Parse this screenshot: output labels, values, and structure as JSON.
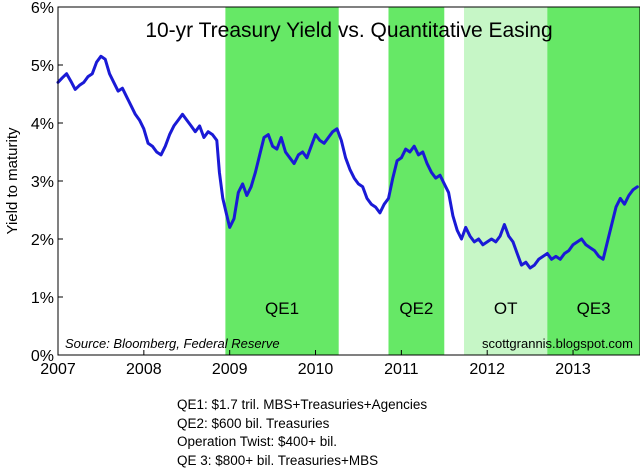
{
  "chart_data": {
    "type": "line",
    "title": "10-yr Treasury Yield vs. Quantitative Easing",
    "ylabel": "Yield to maturity",
    "xlabel": "",
    "ylim": [
      0,
      6
    ],
    "xlim": [
      2007.0,
      2013.78
    ],
    "y_ticks": [
      "0%",
      "1%",
      "2%",
      "3%",
      "4%",
      "5%",
      "6%"
    ],
    "x_ticks": [
      "2007",
      "2008",
      "2009",
      "2010",
      "2011",
      "2012",
      "2013"
    ],
    "grid": false,
    "source": "Source: Bloomberg, Federal Reserve",
    "credit": "scottgrannis.blogspot.com",
    "line_color": "#1a1ad6",
    "shaded_regions": [
      {
        "label": "QE1",
        "start": 2008.95,
        "end": 2010.27,
        "color": "#66e866"
      },
      {
        "label": "QE2",
        "start": 2010.85,
        "end": 2011.5,
        "color": "#66e866"
      },
      {
        "label": "OT",
        "start": 2011.73,
        "end": 2012.7,
        "color": "#c6f6c6"
      },
      {
        "label": "QE3",
        "start": 2012.7,
        "end": 2013.78,
        "color": "#66e866"
      }
    ],
    "series": [
      {
        "values": [
          [
            2007.0,
            4.7
          ],
          [
            2007.05,
            4.78
          ],
          [
            2007.1,
            4.85
          ],
          [
            2007.15,
            4.72
          ],
          [
            2007.2,
            4.58
          ],
          [
            2007.25,
            4.65
          ],
          [
            2007.3,
            4.7
          ],
          [
            2007.35,
            4.8
          ],
          [
            2007.4,
            4.85
          ],
          [
            2007.45,
            5.05
          ],
          [
            2007.5,
            5.15
          ],
          [
            2007.55,
            5.1
          ],
          [
            2007.6,
            4.85
          ],
          [
            2007.65,
            4.7
          ],
          [
            2007.7,
            4.55
          ],
          [
            2007.75,
            4.6
          ],
          [
            2007.8,
            4.45
          ],
          [
            2007.85,
            4.3
          ],
          [
            2007.9,
            4.15
          ],
          [
            2007.95,
            4.05
          ],
          [
            2008.0,
            3.9
          ],
          [
            2008.05,
            3.65
          ],
          [
            2008.1,
            3.6
          ],
          [
            2008.15,
            3.5
          ],
          [
            2008.2,
            3.45
          ],
          [
            2008.25,
            3.6
          ],
          [
            2008.3,
            3.8
          ],
          [
            2008.35,
            3.95
          ],
          [
            2008.4,
            4.05
          ],
          [
            2008.45,
            4.15
          ],
          [
            2008.5,
            4.05
          ],
          [
            2008.55,
            3.95
          ],
          [
            2008.6,
            3.85
          ],
          [
            2008.65,
            3.95
          ],
          [
            2008.7,
            3.75
          ],
          [
            2008.75,
            3.85
          ],
          [
            2008.8,
            3.8
          ],
          [
            2008.85,
            3.7
          ],
          [
            2008.88,
            3.15
          ],
          [
            2008.92,
            2.7
          ],
          [
            2008.96,
            2.45
          ],
          [
            2009.0,
            2.2
          ],
          [
            2009.05,
            2.35
          ],
          [
            2009.1,
            2.8
          ],
          [
            2009.15,
            2.95
          ],
          [
            2009.2,
            2.75
          ],
          [
            2009.25,
            2.9
          ],
          [
            2009.3,
            3.15
          ],
          [
            2009.35,
            3.45
          ],
          [
            2009.4,
            3.75
          ],
          [
            2009.45,
            3.8
          ],
          [
            2009.5,
            3.6
          ],
          [
            2009.55,
            3.55
          ],
          [
            2009.6,
            3.75
          ],
          [
            2009.65,
            3.5
          ],
          [
            2009.7,
            3.4
          ],
          [
            2009.75,
            3.3
          ],
          [
            2009.8,
            3.45
          ],
          [
            2009.85,
            3.5
          ],
          [
            2009.9,
            3.4
          ],
          [
            2009.95,
            3.6
          ],
          [
            2010.0,
            3.8
          ],
          [
            2010.05,
            3.7
          ],
          [
            2010.1,
            3.65
          ],
          [
            2010.15,
            3.75
          ],
          [
            2010.2,
            3.85
          ],
          [
            2010.25,
            3.9
          ],
          [
            2010.3,
            3.7
          ],
          [
            2010.35,
            3.4
          ],
          [
            2010.4,
            3.2
          ],
          [
            2010.45,
            3.05
          ],
          [
            2010.5,
            2.95
          ],
          [
            2010.55,
            2.9
          ],
          [
            2010.6,
            2.7
          ],
          [
            2010.65,
            2.6
          ],
          [
            2010.7,
            2.55
          ],
          [
            2010.75,
            2.45
          ],
          [
            2010.8,
            2.6
          ],
          [
            2010.85,
            2.7
          ],
          [
            2010.9,
            3.05
          ],
          [
            2010.95,
            3.35
          ],
          [
            2011.0,
            3.4
          ],
          [
            2011.05,
            3.55
          ],
          [
            2011.1,
            3.5
          ],
          [
            2011.15,
            3.6
          ],
          [
            2011.2,
            3.45
          ],
          [
            2011.25,
            3.5
          ],
          [
            2011.3,
            3.3
          ],
          [
            2011.35,
            3.15
          ],
          [
            2011.4,
            3.05
          ],
          [
            2011.45,
            3.1
          ],
          [
            2011.5,
            2.95
          ],
          [
            2011.55,
            2.8
          ],
          [
            2011.6,
            2.4
          ],
          [
            2011.65,
            2.15
          ],
          [
            2011.7,
            2.0
          ],
          [
            2011.75,
            2.2
          ],
          [
            2011.8,
            2.05
          ],
          [
            2011.85,
            1.95
          ],
          [
            2011.9,
            2.0
          ],
          [
            2011.95,
            1.9
          ],
          [
            2012.0,
            1.95
          ],
          [
            2012.05,
            2.0
          ],
          [
            2012.1,
            1.95
          ],
          [
            2012.15,
            2.05
          ],
          [
            2012.2,
            2.25
          ],
          [
            2012.25,
            2.05
          ],
          [
            2012.3,
            1.95
          ],
          [
            2012.35,
            1.75
          ],
          [
            2012.4,
            1.55
          ],
          [
            2012.45,
            1.6
          ],
          [
            2012.5,
            1.5
          ],
          [
            2012.55,
            1.55
          ],
          [
            2012.6,
            1.65
          ],
          [
            2012.65,
            1.7
          ],
          [
            2012.7,
            1.75
          ],
          [
            2012.75,
            1.65
          ],
          [
            2012.8,
            1.7
          ],
          [
            2012.85,
            1.65
          ],
          [
            2012.9,
            1.75
          ],
          [
            2012.95,
            1.8
          ],
          [
            2013.0,
            1.9
          ],
          [
            2013.05,
            1.95
          ],
          [
            2013.1,
            2.0
          ],
          [
            2013.15,
            1.9
          ],
          [
            2013.2,
            1.85
          ],
          [
            2013.25,
            1.8
          ],
          [
            2013.3,
            1.7
          ],
          [
            2013.35,
            1.65
          ],
          [
            2013.4,
            1.95
          ],
          [
            2013.45,
            2.25
          ],
          [
            2013.5,
            2.55
          ],
          [
            2013.55,
            2.7
          ],
          [
            2013.6,
            2.6
          ],
          [
            2013.65,
            2.75
          ],
          [
            2013.7,
            2.85
          ],
          [
            2013.75,
            2.9
          ]
        ]
      }
    ]
  },
  "notes": [
    "QE1: $1.7 tril. MBS+Treasuries+Agencies",
    "QE2: $600 bil. Treasuries",
    "Operation Twist: $400+ bil.",
    "QE 3: $800+ bil. Treasuries+MBS"
  ]
}
